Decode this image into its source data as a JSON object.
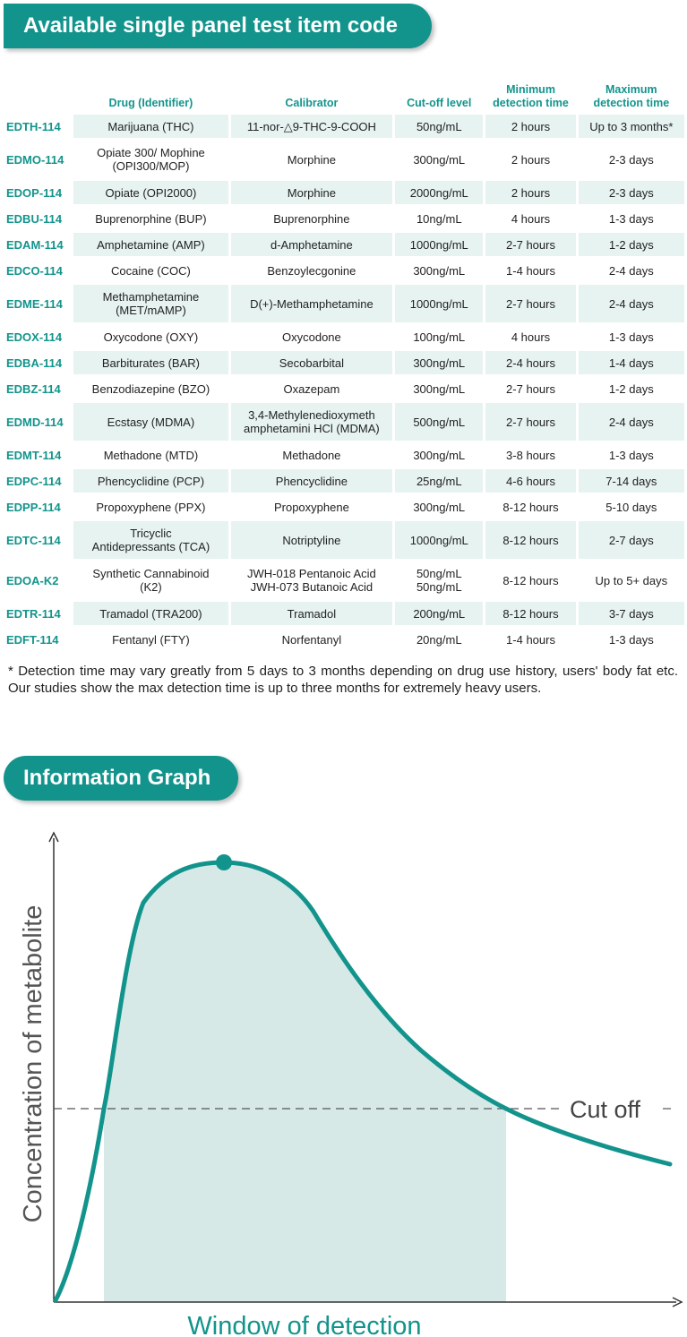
{
  "section1": {
    "title": "Available single panel test item code"
  },
  "table": {
    "headers": [
      "Drug (Identifier)",
      "Calibrator",
      "Cut-off level",
      "Minimum\ndetection time",
      "Maximum\ndetection time"
    ],
    "rows": [
      {
        "code": "EDTH-114",
        "drug": "Marijuana (THC)",
        "calibrator": "11-nor-△9-THC-9-COOH",
        "cutoff": "50ng/mL",
        "min": "2 hours",
        "max": "Up to 3 months*"
      },
      {
        "code": "EDMO-114",
        "drug": "Opiate 300/ Mophine\n(OPI300/MOP)",
        "calibrator": "Morphine",
        "cutoff": "300ng/mL",
        "min": "2 hours",
        "max": "2-3 days"
      },
      {
        "code": "EDOP-114",
        "drug": "Opiate (OPI2000)",
        "calibrator": "Morphine",
        "cutoff": "2000ng/mL",
        "min": "2 hours",
        "max": "2-3 days"
      },
      {
        "code": "EDBU-114",
        "drug": "Buprenorphine (BUP)",
        "calibrator": "Buprenorphine",
        "cutoff": "10ng/mL",
        "min": "4 hours",
        "max": "1-3 days"
      },
      {
        "code": "EDAM-114",
        "drug": "Amphetamine (AMP)",
        "calibrator": "d-Amphetamine",
        "cutoff": "1000ng/mL",
        "min": "2-7 hours",
        "max": "1-2 days"
      },
      {
        "code": "EDCO-114",
        "drug": "Cocaine (COC)",
        "calibrator": "Benzoylecgonine",
        "cutoff": "300ng/mL",
        "min": "1-4 hours",
        "max": "2-4 days"
      },
      {
        "code": "EDME-114",
        "drug": "Methamphetamine\n(MET/mAMP)",
        "calibrator": "D(+)-Methamphetamine",
        "cutoff": "1000ng/mL",
        "min": "2-7 hours",
        "max": "2-4 days"
      },
      {
        "code": "EDOX-114",
        "drug": "Oxycodone (OXY)",
        "calibrator": "Oxycodone",
        "cutoff": "100ng/mL",
        "min": "4 hours",
        "max": "1-3 days"
      },
      {
        "code": "EDBA-114",
        "drug": "Barbiturates (BAR)",
        "calibrator": "Secobarbital",
        "cutoff": "300ng/mL",
        "min": "2-4 hours",
        "max": "1-4 days"
      },
      {
        "code": "EDBZ-114",
        "drug": "Benzodiazepine (BZO)",
        "calibrator": "Oxazepam",
        "cutoff": "300ng/mL",
        "min": "2-7 hours",
        "max": "1-2 days"
      },
      {
        "code": "EDMD-114",
        "drug": "Ecstasy (MDMA)",
        "calibrator": "3,4-Methylenedioxymeth\namphetamini HCl (MDMA)",
        "cutoff": "500ng/mL",
        "min": "2-7 hours",
        "max": "2-4 days"
      },
      {
        "code": "EDMT-114",
        "drug": "Methadone (MTD)",
        "calibrator": "Methadone",
        "cutoff": "300ng/mL",
        "min": "3-8 hours",
        "max": "1-3 days"
      },
      {
        "code": "EDPC-114",
        "drug": "Phencyclidine (PCP)",
        "calibrator": "Phencyclidine",
        "cutoff": "25ng/mL",
        "min": "4-6 hours",
        "max": "7-14 days"
      },
      {
        "code": "EDPP-114",
        "drug": "Propoxyphene (PPX)",
        "calibrator": "Propoxyphene",
        "cutoff": "300ng/mL",
        "min": "8-12 hours",
        "max": "5-10 days"
      },
      {
        "code": "EDTC-114",
        "drug": "Tricyclic\nAntidepressants (TCA)",
        "calibrator": "Notriptyline",
        "cutoff": "1000ng/mL",
        "min": "8-12 hours",
        "max": "2-7 days"
      },
      {
        "code": "EDOA-K2",
        "drug": "Synthetic Cannabinoid\n(K2)",
        "calibrator": "JWH-018 Pentanoic Acid\nJWH-073 Butanoic Acid",
        "cutoff": "50ng/mL\n50ng/mL",
        "min": "8-12 hours",
        "max": "Up to 5+ days"
      },
      {
        "code": "EDTR-114",
        "drug": "Tramadol (TRA200)",
        "calibrator": "Tramadol",
        "cutoff": "200ng/mL",
        "min": "8-12 hours",
        "max": "3-7 days"
      },
      {
        "code": "EDFT-114",
        "drug": "Fentanyl (FTY)",
        "calibrator": "Norfentanyl",
        "cutoff": "20ng/mL",
        "min": "1-4 hours",
        "max": "1-3 days"
      }
    ]
  },
  "footnote": "* Detection time may vary greatly from 5 days to 3 months depending on drug use history, users' body fat etc. Our studies show the max detection time is up to three months for extremely heavy users.",
  "section2": {
    "title": "Information Graph"
  },
  "graph": {
    "ylabel": "Concentration of metabolite",
    "xlabel": "Window of detection",
    "cutoff_label": "Cut off"
  },
  "colors": {
    "accent": "#12948c",
    "row_bg": "#e6f3f1",
    "fill": "#d6e9e7"
  }
}
